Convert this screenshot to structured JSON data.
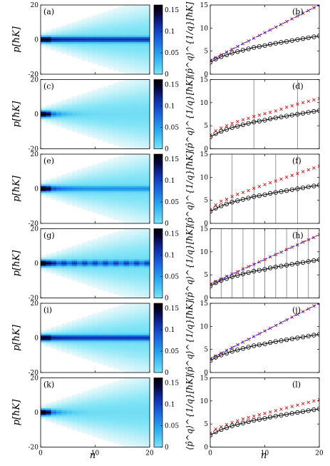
{
  "figure": {
    "xlabel": "n",
    "left_ylabel": "p[ħK]",
    "right_ylabel": "⟨p̂^q⟩^{1/q}[ħK]"
  },
  "colors": {
    "cmap": [
      "#ffffff",
      "#e0f7fb",
      "#7ee4f6",
      "#2ab0ef",
      "#1a63df",
      "#102fa8",
      "#060638",
      "#000000"
    ],
    "cross": "#d01818",
    "circle": "#000000",
    "blue_line": "#1a1aff",
    "black_line": "#000000",
    "vline": "#8a8a8a"
  },
  "chart_data": [
    {
      "type": "heatmap",
      "panel": "(a)",
      "xlim": [
        0,
        20
      ],
      "ylim": [
        -20,
        20
      ],
      "xticks": [
        0,
        10,
        20
      ],
      "yticks": [
        -20,
        0,
        20
      ],
      "colorbar": {
        "range": [
          0,
          0.15
        ],
        "ticks": [
          0,
          0.05,
          0.1,
          0.15
        ],
        "labels": [
          "0",
          "0.05",
          "0.1",
          "0.15"
        ]
      },
      "central_band": "strong"
    },
    {
      "type": "line",
      "panel": "(b)",
      "xlim": [
        0,
        20
      ],
      "ylim": [
        0,
        15
      ],
      "xticks": [
        0,
        10,
        20
      ],
      "yticks": [
        0,
        5,
        10,
        15
      ],
      "series": [
        {
          "kind": "circles",
          "x": [
            0,
            1,
            2,
            3,
            4,
            5,
            6,
            7,
            8,
            9,
            10,
            11,
            12,
            13,
            14,
            15,
            16,
            17,
            18,
            19,
            20
          ],
          "values": [
            2.6,
            3.3,
            3.8,
            4.2,
            4.6,
            4.9,
            5.2,
            5.5,
            5.8,
            6.0,
            6.2,
            6.5,
            6.7,
            6.9,
            7.1,
            7.3,
            7.5,
            7.7,
            7.9,
            8.1,
            8.3
          ]
        },
        {
          "kind": "line",
          "x": [
            0,
            2,
            4,
            6,
            8,
            10,
            12,
            14,
            16,
            18,
            20
          ],
          "values": [
            2.6,
            3.8,
            4.6,
            5.2,
            5.8,
            6.2,
            6.7,
            7.1,
            7.5,
            7.9,
            8.3
          ]
        },
        {
          "kind": "crosses",
          "x": [
            0,
            1,
            2,
            3,
            4,
            5,
            6,
            7,
            8,
            9,
            10,
            11,
            12,
            13,
            14,
            15,
            16,
            17,
            18,
            19,
            20
          ],
          "values": [
            3.0,
            3.6,
            4.2,
            4.8,
            5.4,
            6.0,
            6.6,
            7.2,
            7.8,
            8.4,
            9.0,
            9.6,
            10.2,
            10.8,
            11.4,
            12.0,
            12.6,
            13.2,
            13.8,
            14.4,
            15.0
          ]
        },
        {
          "kind": "blue",
          "x": [
            0,
            20
          ],
          "values": [
            3.0,
            15.0
          ]
        }
      ]
    },
    {
      "type": "heatmap",
      "panel": "(c)",
      "xlim": [
        0,
        20
      ],
      "ylim": [
        -20,
        20
      ],
      "xticks": [
        0,
        10,
        20
      ],
      "yticks": [
        -20,
        0,
        20
      ],
      "colorbar": {
        "range": [
          0,
          0.15
        ],
        "ticks": [
          0,
          0.05,
          0.1,
          0.15
        ],
        "labels": [
          "0",
          "0.05",
          "0.1",
          "0.15"
        ]
      },
      "central_band": "weak"
    },
    {
      "type": "line",
      "panel": "(d)",
      "xlim": [
        0,
        20
      ],
      "ylim": [
        0,
        15
      ],
      "xticks": [
        0,
        10,
        20
      ],
      "yticks": [
        0,
        5,
        10,
        15
      ],
      "vlines": [
        8,
        16
      ],
      "series": [
        {
          "kind": "circles",
          "x": [
            0,
            1,
            2,
            3,
            4,
            5,
            6,
            7,
            8,
            9,
            10,
            11,
            12,
            13,
            14,
            15,
            16,
            17,
            18,
            19,
            20
          ],
          "values": [
            2.6,
            3.3,
            3.8,
            4.2,
            4.6,
            4.9,
            5.2,
            5.5,
            5.8,
            6.0,
            6.2,
            6.5,
            6.7,
            6.9,
            7.1,
            7.3,
            7.5,
            7.7,
            7.9,
            8.1,
            8.3
          ]
        },
        {
          "kind": "line",
          "x": [
            0,
            2,
            4,
            6,
            8,
            10,
            12,
            14,
            16,
            18,
            20
          ],
          "values": [
            2.6,
            3.8,
            4.6,
            5.2,
            5.8,
            6.2,
            6.7,
            7.1,
            7.5,
            7.9,
            8.3
          ]
        },
        {
          "kind": "crosses",
          "x": [
            0,
            1,
            2,
            3,
            4,
            5,
            6,
            7,
            8,
            9,
            10,
            11,
            12,
            13,
            14,
            15,
            16,
            17,
            18,
            19,
            20
          ],
          "values": [
            3.0,
            3.9,
            4.5,
            5.0,
            5.5,
            5.9,
            6.3,
            6.6,
            7.0,
            7.3,
            7.6,
            7.9,
            8.2,
            8.6,
            9.0,
            9.3,
            9.7,
            10.0,
            10.3,
            10.6,
            10.9
          ]
        }
      ]
    },
    {
      "type": "heatmap",
      "panel": "(e)",
      "xlim": [
        0,
        20
      ],
      "ylim": [
        -20,
        20
      ],
      "xticks": [
        0,
        10,
        20
      ],
      "yticks": [
        -20,
        0,
        20
      ],
      "colorbar": {
        "range": [
          0,
          0.15
        ],
        "ticks": [
          0,
          0.05,
          0.1,
          0.15
        ],
        "labels": [
          "0",
          "0.05",
          "0.1",
          "0.15"
        ]
      },
      "central_band": "medium"
    },
    {
      "type": "line",
      "panel": "(f)",
      "xlim": [
        0,
        20
      ],
      "ylim": [
        0,
        15
      ],
      "xticks": [
        0,
        10,
        20
      ],
      "yticks": [
        0,
        5,
        10,
        15
      ],
      "vlines": [
        4,
        8,
        12,
        16
      ],
      "series": [
        {
          "kind": "circles",
          "x": [
            0,
            1,
            2,
            3,
            4,
            5,
            6,
            7,
            8,
            9,
            10,
            11,
            12,
            13,
            14,
            15,
            16,
            17,
            18,
            19,
            20
          ],
          "values": [
            2.6,
            3.3,
            3.8,
            4.2,
            4.6,
            4.9,
            5.2,
            5.5,
            5.8,
            6.0,
            6.2,
            6.5,
            6.7,
            6.9,
            7.1,
            7.3,
            7.5,
            7.7,
            7.9,
            8.1,
            8.3
          ]
        },
        {
          "kind": "line",
          "x": [
            0,
            2,
            4,
            6,
            8,
            10,
            12,
            14,
            16,
            18,
            20
          ],
          "values": [
            2.6,
            3.8,
            4.6,
            5.2,
            5.8,
            6.2,
            6.7,
            7.1,
            7.5,
            7.9,
            8.3
          ]
        },
        {
          "kind": "crosses",
          "x": [
            0,
            1,
            2,
            3,
            4,
            5,
            6,
            7,
            8,
            9,
            10,
            11,
            12,
            13,
            14,
            15,
            16,
            17,
            18,
            19,
            20
          ],
          "values": [
            3.0,
            4.0,
            4.8,
            5.2,
            5.8,
            6.3,
            6.7,
            7.1,
            7.6,
            8.0,
            8.4,
            8.8,
            9.2,
            9.6,
            10.0,
            10.4,
            10.8,
            11.2,
            11.6,
            12.0,
            12.4
          ]
        }
      ]
    },
    {
      "type": "heatmap",
      "panel": "(g)",
      "xlim": [
        0,
        20
      ],
      "ylim": [
        -20,
        20
      ],
      "xticks": [
        0,
        10,
        20
      ],
      "yticks": [
        -20,
        0,
        20
      ],
      "colorbar": {
        "range": [
          0,
          0.15
        ],
        "ticks": [
          0,
          0.05,
          0.1,
          0.15
        ],
        "labels": [
          "0",
          "0.05",
          "0.1",
          "0.15"
        ]
      },
      "central_band": "dashed"
    },
    {
      "type": "line",
      "panel": "(h)",
      "xlim": [
        0,
        20
      ],
      "ylim": [
        0,
        15
      ],
      "xticks": [
        0,
        10,
        20
      ],
      "yticks": [
        0,
        5,
        10,
        15
      ],
      "vlines": [
        2,
        4,
        6,
        8,
        10,
        12,
        14,
        16,
        18
      ],
      "series": [
        {
          "kind": "circles",
          "x": [
            0,
            1,
            2,
            3,
            4,
            5,
            6,
            7,
            8,
            9,
            10,
            11,
            12,
            13,
            14,
            15,
            16,
            17,
            18,
            19,
            20
          ],
          "values": [
            2.6,
            3.3,
            3.8,
            4.2,
            4.6,
            4.9,
            5.2,
            5.5,
            5.8,
            6.0,
            6.2,
            6.5,
            6.7,
            6.9,
            7.1,
            7.3,
            7.5,
            7.7,
            7.9,
            8.1,
            8.3
          ]
        },
        {
          "kind": "line",
          "x": [
            0,
            2,
            4,
            6,
            8,
            10,
            12,
            14,
            16,
            18,
            20
          ],
          "values": [
            2.6,
            3.8,
            4.6,
            5.2,
            5.8,
            6.2,
            6.7,
            7.1,
            7.5,
            7.9,
            8.3
          ]
        },
        {
          "kind": "crosses",
          "x": [
            0,
            1,
            2,
            3,
            4,
            5,
            6,
            7,
            8,
            9,
            10,
            11,
            12,
            13,
            14,
            15,
            16,
            17,
            18,
            19,
            20
          ],
          "values": [
            3.0,
            3.6,
            4.1,
            4.7,
            5.2,
            5.7,
            6.3,
            6.8,
            7.3,
            7.8,
            8.3,
            8.9,
            9.4,
            9.9,
            10.5,
            11.0,
            11.5,
            12.1,
            12.6,
            13.1,
            13.7
          ]
        },
        {
          "kind": "blue",
          "x": [
            0,
            20
          ],
          "values": [
            3.0,
            13.7
          ]
        }
      ]
    },
    {
      "type": "heatmap",
      "panel": "(i)",
      "xlim": [
        0,
        20
      ],
      "ylim": [
        -20,
        20
      ],
      "xticks": [
        0,
        10,
        20
      ],
      "yticks": [
        -20,
        0,
        20
      ],
      "colorbar": {
        "range": [
          0,
          0.15
        ],
        "ticks": [
          0,
          0.05,
          0.1,
          0.15
        ],
        "labels": [
          "0",
          "0.05",
          "0.1",
          "0.15"
        ]
      },
      "central_band": "strong"
    },
    {
      "type": "line",
      "panel": "(j)",
      "xlim": [
        0,
        20
      ],
      "ylim": [
        0,
        15
      ],
      "xticks": [
        0,
        10,
        20
      ],
      "yticks": [
        0,
        5,
        10,
        15
      ],
      "series": [
        {
          "kind": "circles",
          "x": [
            0,
            1,
            2,
            3,
            4,
            5,
            6,
            7,
            8,
            9,
            10,
            11,
            12,
            13,
            14,
            15,
            16,
            17,
            18,
            19,
            20
          ],
          "values": [
            2.6,
            3.3,
            3.8,
            4.2,
            4.6,
            4.9,
            5.2,
            5.5,
            5.8,
            6.0,
            6.2,
            6.5,
            6.7,
            6.9,
            7.1,
            7.3,
            7.5,
            7.7,
            7.9,
            8.1,
            8.3
          ]
        },
        {
          "kind": "line",
          "x": [
            0,
            2,
            4,
            6,
            8,
            10,
            12,
            14,
            16,
            18,
            20
          ],
          "values": [
            2.6,
            3.8,
            4.6,
            5.2,
            5.8,
            6.2,
            6.7,
            7.1,
            7.5,
            7.9,
            8.3
          ]
        },
        {
          "kind": "crosses",
          "x": [
            0,
            1,
            2,
            3,
            4,
            5,
            6,
            7,
            8,
            9,
            10,
            11,
            12,
            13,
            14,
            15,
            16,
            17,
            18,
            19,
            20
          ],
          "values": [
            3.0,
            3.6,
            4.2,
            4.8,
            5.4,
            6.0,
            6.6,
            7.2,
            7.8,
            8.4,
            9.0,
            9.6,
            10.2,
            10.8,
            11.4,
            12.0,
            12.6,
            13.2,
            13.8,
            14.4,
            15.0
          ]
        },
        {
          "kind": "blue",
          "x": [
            0,
            20
          ],
          "values": [
            3.0,
            15.0
          ]
        }
      ]
    },
    {
      "type": "heatmap",
      "panel": "(k)",
      "xlim": [
        0,
        20
      ],
      "ylim": [
        -20,
        20
      ],
      "xticks": [
        0,
        10,
        20
      ],
      "yticks": [
        -20,
        0,
        20
      ],
      "colorbar": {
        "range": [
          0,
          0.15
        ],
        "ticks": [
          0,
          0.05,
          0.1,
          0.15
        ],
        "labels": [
          "0",
          "0.05",
          "0.1",
          "0.15"
        ]
      },
      "central_band": "weak"
    },
    {
      "type": "line",
      "panel": "(l)",
      "xlim": [
        0,
        20
      ],
      "ylim": [
        0,
        15
      ],
      "xticks": [
        0,
        10,
        20
      ],
      "yticks": [
        0,
        5,
        10,
        15
      ],
      "series": [
        {
          "kind": "circles",
          "x": [
            0,
            1,
            2,
            3,
            4,
            5,
            6,
            7,
            8,
            9,
            10,
            11,
            12,
            13,
            14,
            15,
            16,
            17,
            18,
            19,
            20
          ],
          "values": [
            2.6,
            3.3,
            3.8,
            4.2,
            4.6,
            4.9,
            5.2,
            5.5,
            5.8,
            6.0,
            6.2,
            6.5,
            6.7,
            6.9,
            7.1,
            7.3,
            7.5,
            7.7,
            7.9,
            8.1,
            8.3
          ]
        },
        {
          "kind": "line",
          "x": [
            0,
            2,
            4,
            6,
            8,
            10,
            12,
            14,
            16,
            18,
            20
          ],
          "values": [
            2.6,
            3.8,
            4.6,
            5.2,
            5.8,
            6.2,
            6.7,
            7.1,
            7.5,
            7.9,
            8.3
          ]
        },
        {
          "kind": "crosses",
          "x": [
            0,
            1,
            2,
            3,
            4,
            5,
            6,
            7,
            8,
            9,
            10,
            11,
            12,
            13,
            14,
            15,
            16,
            17,
            18,
            19,
            20
          ],
          "values": [
            3.0,
            3.9,
            4.4,
            4.9,
            5.3,
            5.7,
            6.1,
            6.4,
            6.7,
            7.0,
            7.3,
            7.6,
            7.9,
            8.2,
            8.5,
            8.8,
            9.1,
            9.4,
            9.7,
            10.0,
            10.3
          ]
        }
      ]
    }
  ]
}
